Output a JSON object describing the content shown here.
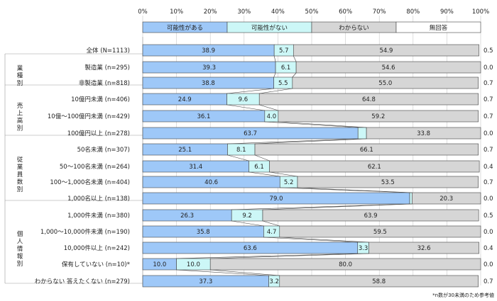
{
  "chart_data": {
    "type": "bar",
    "orientation": "horizontal",
    "stacked": "percent",
    "xlim": [
      0,
      100
    ],
    "ticks": [
      "0%",
      "10%",
      "20%",
      "30%",
      "40%",
      "50%",
      "60%",
      "70%",
      "80%",
      "90%",
      "100%"
    ],
    "legend": [
      {
        "name": "可能性がある",
        "color": "#9ec8f8"
      },
      {
        "name": "可能性がない",
        "color": "#ccf7f7"
      },
      {
        "name": "わからない",
        "color": "#d6d6d6"
      },
      {
        "name": "無回答",
        "color": "#ffffff"
      }
    ],
    "groups": [
      {
        "label": "",
        "lines": [],
        "start": 0,
        "count": 1
      },
      {
        "label": "業種別",
        "lines": [
          "業",
          "種",
          "別"
        ],
        "start": 1,
        "count": 2
      },
      {
        "label": "売上高別",
        "lines": [
          "売",
          "上",
          "高",
          "別"
        ],
        "start": 3,
        "count": 3
      },
      {
        "label": "従業員数別",
        "lines": [
          "従",
          "業",
          "員",
          "数",
          "別"
        ],
        "start": 6,
        "count": 4
      },
      {
        "label": "個人情報別",
        "lines": [
          "個",
          "人",
          "情",
          "報",
          "別"
        ],
        "start": 10,
        "count": 5
      }
    ],
    "rows": [
      {
        "label": "全体 (N=1113)",
        "values": [
          38.9,
          5.7,
          54.9,
          0.5
        ],
        "labels": [
          "38.9",
          "5.7",
          "54.9",
          "0.5"
        ]
      },
      {
        "label": "製造業 (n=295)",
        "values": [
          39.3,
          6.1,
          54.6,
          0.0
        ],
        "labels": [
          "39.3",
          "6.1",
          "54.6",
          "0.0"
        ]
      },
      {
        "label": "非製造業 (n=818)",
        "values": [
          38.8,
          5.5,
          55.0,
          0.7
        ],
        "labels": [
          "38.8",
          "5.5",
          "55.0",
          "0.7"
        ]
      },
      {
        "label": "10億円未満 (n=406)",
        "values": [
          24.9,
          9.6,
          64.8,
          0.7
        ],
        "labels": [
          "24.9",
          "9.6",
          "64.8",
          "0.7"
        ]
      },
      {
        "label": "10億～100億円未満 (n=429)",
        "values": [
          36.1,
          4.0,
          59.2,
          0.7
        ],
        "labels": [
          "36.1",
          "4.0",
          "59.2",
          "0.7"
        ]
      },
      {
        "label": "100億円以上 (n=278)",
        "values": [
          63.7,
          2.5,
          33.8,
          0.0
        ],
        "labels": [
          "63.7",
          "2.5",
          "33.8",
          "0.0"
        ]
      },
      {
        "label": "50名未満 (n=307)",
        "values": [
          25.1,
          8.1,
          66.1,
          0.7
        ],
        "labels": [
          "25.1",
          "8.1",
          "66.1",
          "0.7"
        ]
      },
      {
        "label": "50～100名未満 (n=264)",
        "values": [
          31.4,
          6.1,
          62.1,
          0.4
        ],
        "labels": [
          "31.4",
          "6.1",
          "62.1",
          "0.4"
        ]
      },
      {
        "label": "100～1,000名未満 (n=404)",
        "values": [
          40.6,
          5.2,
          53.5,
          0.7
        ],
        "labels": [
          "40.6",
          "5.2",
          "53.5",
          "0.7"
        ]
      },
      {
        "label": "1,000名以上 (n=138)",
        "values": [
          79.0,
          0.7,
          20.3,
          0.0
        ],
        "labels": [
          "79.0",
          "0.7",
          "20.3",
          "0.0"
        ]
      },
      {
        "label": "1,000件未満 (n=380)",
        "values": [
          26.3,
          9.2,
          63.9,
          0.5
        ],
        "labels": [
          "26.3",
          "9.2",
          "63.9",
          "0.5"
        ]
      },
      {
        "label": "1,000～10,000件未満 (n=190)",
        "values": [
          35.8,
          4.7,
          59.5,
          0.0
        ],
        "labels": [
          "35.8",
          "4.7",
          "59.5",
          "0.0"
        ]
      },
      {
        "label": "10,000件以上 (n=242)",
        "values": [
          63.6,
          3.3,
          32.6,
          0.4
        ],
        "labels": [
          "63.6",
          "3.3",
          "32.6",
          "0.4"
        ]
      },
      {
        "label": "保有していない (n=10)*",
        "values": [
          10.0,
          10.0,
          80.0,
          0.0
        ],
        "labels": [
          "10.0",
          "10.0",
          "80.0",
          "0.0"
        ]
      },
      {
        "label": "わからない 答えたくない (n=279)",
        "values": [
          37.3,
          3.2,
          58.8,
          0.7
        ],
        "labels": [
          "37.3",
          "3.2",
          "58.8",
          "0.7"
        ]
      }
    ],
    "footnote": "*n数が30未満のため参考値"
  }
}
